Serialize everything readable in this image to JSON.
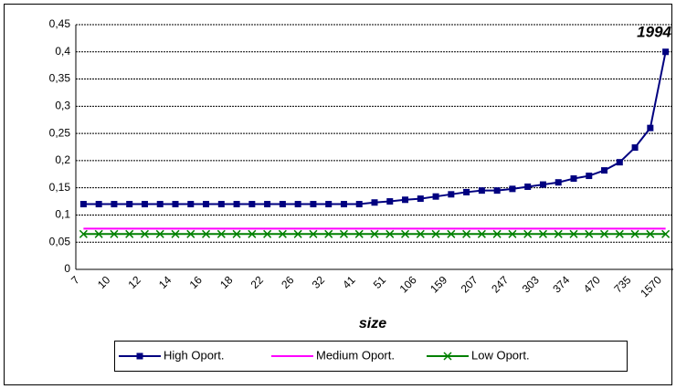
{
  "chart_data": {
    "type": "line",
    "title": "1994",
    "x_label": "size",
    "categories": [
      "7",
      null,
      "10",
      null,
      "12",
      null,
      "14",
      null,
      "16",
      null,
      "18",
      null,
      "22",
      null,
      "26",
      null,
      "32",
      null,
      "41",
      null,
      "51",
      null,
      "106",
      null,
      "159",
      null,
      "207",
      null,
      "247",
      null,
      "303",
      null,
      "374",
      null,
      "470",
      null,
      "735",
      null,
      "1570"
    ],
    "series": [
      {
        "name": "High Oport.",
        "color": "#000080",
        "marker": "square",
        "values": [
          0.12,
          0.12,
          0.12,
          0.12,
          0.12,
          0.12,
          0.12,
          0.12,
          0.12,
          0.12,
          0.12,
          0.12,
          0.12,
          0.12,
          0.12,
          0.12,
          0.12,
          0.12,
          0.12,
          0.123,
          0.125,
          0.128,
          0.13,
          0.134,
          0.138,
          0.142,
          0.145,
          0.145,
          0.148,
          0.152,
          0.156,
          0.16,
          0.167,
          0.172,
          0.182,
          0.197,
          0.224,
          0.26,
          0.4
        ]
      },
      {
        "name": "Medium Oport.",
        "color": "#ff00ff",
        "marker": "none",
        "values": [
          0.075,
          0.075,
          0.075,
          0.075,
          0.075,
          0.075,
          0.075,
          0.075,
          0.075,
          0.075,
          0.075,
          0.075,
          0.075,
          0.075,
          0.075,
          0.075,
          0.075,
          0.075,
          0.075,
          0.075,
          0.075,
          0.075,
          0.075,
          0.075,
          0.075,
          0.075,
          0.075,
          0.075,
          0.075,
          0.075,
          0.075,
          0.075,
          0.075,
          0.075,
          0.075,
          0.075,
          0.075,
          0.075,
          0.075
        ]
      },
      {
        "name": "Low Oport.",
        "color": "#008000",
        "marker": "x",
        "values": [
          0.065,
          0.065,
          0.065,
          0.065,
          0.065,
          0.065,
          0.065,
          0.065,
          0.065,
          0.065,
          0.065,
          0.065,
          0.065,
          0.065,
          0.065,
          0.065,
          0.065,
          0.065,
          0.065,
          0.065,
          0.065,
          0.065,
          0.065,
          0.065,
          0.065,
          0.065,
          0.065,
          0.065,
          0.065,
          0.065,
          0.065,
          0.065,
          0.065,
          0.065,
          0.065,
          0.065,
          0.065,
          0.065,
          0.065
        ]
      }
    ],
    "ylim": [
      0,
      0.45
    ],
    "yticks": [
      {
        "value": 0,
        "label": "0"
      },
      {
        "value": 0.05,
        "label": "0,05"
      },
      {
        "value": 0.1,
        "label": "0,1"
      },
      {
        "value": 0.15,
        "label": "0,15"
      },
      {
        "value": 0.2,
        "label": "0,2"
      },
      {
        "value": 0.25,
        "label": "0,25"
      },
      {
        "value": 0.3,
        "label": "0,3"
      },
      {
        "value": 0.35,
        "label": "0,35"
      },
      {
        "value": 0.4,
        "label": "0,4"
      },
      {
        "value": 0.45,
        "label": "0,45"
      }
    ],
    "grid": true,
    "legend": "bottom"
  }
}
